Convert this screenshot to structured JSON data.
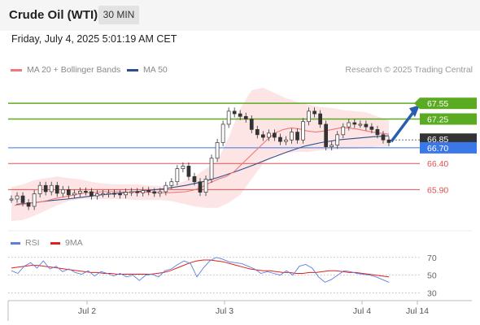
{
  "header": {
    "title": "Crude Oil (WTI)",
    "interval": "30 MIN",
    "datetime": "Friday, July 4, 2025 5:01:19 AM CET"
  },
  "legend": {
    "ma20": "MA 20 + Bollinger Bands",
    "ma50": "MA 50",
    "credit": "Research © 2025 Trading Central",
    "rsi": "RSI",
    "rsi_ma": "9MA"
  },
  "colors": {
    "ma20": "#f0787a",
    "ma50": "#2b4f8c",
    "bands_fill": "#fde0e0",
    "resistance": "#5aab22",
    "pivot": "#3a78e7",
    "support": "#e05050",
    "last_price": "#333333",
    "rsi": "#5b7fe0",
    "rsi_ma": "#e02020"
  },
  "chart_data": {
    "type": "line",
    "ylim": [
      65.3,
      68.05
    ],
    "x_ticks": [
      "Jul 2",
      "Jul 3",
      "Jul 4",
      "Jul 14"
    ],
    "levels": [
      {
        "value": 67.55,
        "label": "67.55",
        "kind": "resistance",
        "tag": true
      },
      {
        "value": 67.25,
        "label": "67.25",
        "kind": "resistance",
        "tag": true
      },
      {
        "value": 66.85,
        "label": "66.85",
        "kind": "last",
        "tag": true
      },
      {
        "value": 66.7,
        "label": "66.70",
        "kind": "pivot",
        "tag": true
      },
      {
        "value": 66.4,
        "label": "66.40",
        "kind": "support",
        "tag": false
      },
      {
        "value": 65.9,
        "label": "65.90",
        "kind": "support",
        "tag": false
      }
    ],
    "price": [
      65.72,
      65.78,
      65.65,
      65.58,
      65.82,
      65.98,
      65.86,
      65.98,
      65.83,
      65.9,
      65.8,
      65.83,
      65.87,
      65.86,
      65.78,
      65.82,
      65.82,
      65.83,
      65.82,
      65.8,
      65.85,
      65.86,
      65.84,
      65.88,
      65.86,
      65.83,
      65.86,
      65.98,
      66.05,
      66.3,
      66.35,
      66.15,
      66.05,
      65.85,
      66.1,
      66.5,
      66.8,
      67.15,
      67.4,
      67.35,
      67.3,
      67.25,
      67.05,
      66.95,
      66.9,
      66.98,
      66.9,
      66.82,
      66.85,
      67.0,
      66.85,
      67.2,
      67.4,
      67.35,
      67.15,
      66.72,
      66.75,
      66.95,
      67.1,
      67.18,
      67.15,
      67.15,
      67.1,
      67.05,
      66.95,
      66.85,
      66.8
    ],
    "ma20": [
      65.6,
      65.62,
      65.64,
      65.66,
      65.69,
      65.73,
      65.76,
      65.79,
      65.82,
      65.84,
      65.85,
      65.86,
      65.86,
      65.86,
      65.85,
      65.85,
      65.85,
      65.85,
      65.84,
      65.84,
      65.85,
      65.86,
      65.89,
      65.95,
      66.03,
      66.1,
      66.15,
      66.25,
      66.4,
      66.55,
      66.7,
      66.85,
      66.98,
      67.05,
      67.08,
      67.06,
      67.02,
      67.0,
      67.02,
      67.05,
      67.08,
      67.08,
      67.06,
      67.03,
      67.0,
      66.98,
      66.96
    ],
    "ma50": [
      65.62,
      65.65,
      65.69,
      65.72,
      65.76,
      65.8,
      65.83,
      65.86,
      65.89,
      65.93,
      65.98,
      66.05,
      66.14,
      66.25,
      66.37,
      66.5,
      66.62,
      66.73,
      66.8,
      66.85,
      66.88,
      66.91,
      66.93
    ],
    "bb_upper": [
      65.95,
      66.0,
      66.08,
      66.12,
      66.15,
      66.12,
      66.1,
      66.05,
      66.02,
      66.0,
      66.0,
      66.0,
      65.98,
      65.97,
      65.98,
      66.05,
      66.15,
      66.3,
      66.45,
      66.9,
      67.45,
      67.8,
      67.85,
      67.75,
      67.65,
      67.58,
      67.52,
      67.48,
      67.46,
      67.42,
      67.4,
      67.38,
      67.3,
      67.22
    ],
    "bb_lower": [
      65.3,
      65.32,
      65.4,
      65.5,
      65.6,
      65.68,
      65.72,
      65.72,
      65.72,
      65.72,
      65.72,
      65.7,
      65.7,
      65.7,
      65.68,
      65.63,
      65.58,
      65.55,
      65.55,
      65.65,
      65.8,
      66.1,
      66.4,
      66.55,
      66.6,
      66.62,
      66.62,
      66.65,
      66.66,
      66.67,
      66.68,
      66.69,
      66.72,
      66.72
    ],
    "forecast_arrow": {
      "from": 66.82,
      "to": 67.55
    },
    "rsi": {
      "ylim": [
        25,
        78
      ],
      "ticks": [
        70,
        50,
        30
      ],
      "rsi": [
        55,
        52,
        60,
        64,
        58,
        66,
        57,
        60,
        54,
        57,
        53,
        51,
        55,
        49,
        54,
        52,
        49,
        52,
        48,
        50,
        44,
        50,
        51,
        48,
        55,
        57,
        62,
        66,
        63,
        48,
        58,
        66,
        70,
        68,
        65,
        64,
        63,
        60,
        57,
        52,
        54,
        52,
        50,
        55,
        50,
        60,
        62,
        58,
        48,
        42,
        45,
        50,
        55,
        54,
        52,
        51,
        50,
        48,
        45,
        42
      ],
      "ma9": [
        58,
        59,
        60,
        61,
        61,
        60,
        59,
        58,
        57,
        56,
        55,
        54,
        53,
        53,
        52,
        52,
        51,
        51,
        51,
        51,
        51,
        51,
        52,
        53,
        55,
        58,
        61,
        64,
        66,
        67,
        67,
        66,
        65,
        63,
        61,
        59,
        57,
        56,
        55,
        55,
        54,
        53,
        53,
        52,
        52,
        53,
        53,
        54,
        55,
        55,
        54,
        53,
        53,
        52,
        51,
        50,
        49,
        48
      ]
    }
  }
}
